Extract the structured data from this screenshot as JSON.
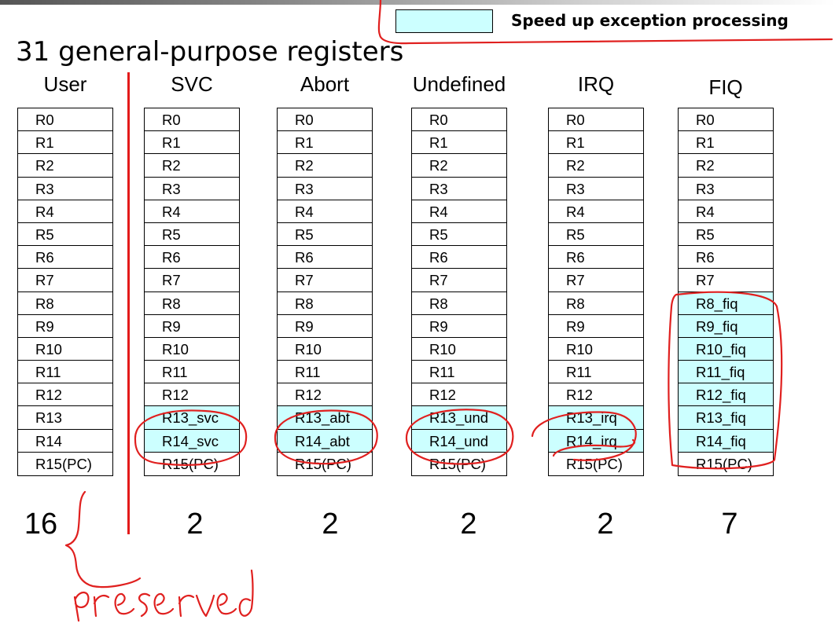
{
  "legend": {
    "label": "Speed up exception processing",
    "swatch_color": "#ccffff"
  },
  "title": "31 general-purpose registers",
  "annotation_color": "#e31a1a",
  "modes": [
    {
      "name": "User",
      "count": "16",
      "registers": [
        "R0",
        "R1",
        "R2",
        "R3",
        "R4",
        "R5",
        "R6",
        "R7",
        "R8",
        "R9",
        "R10",
        "R11",
        "R12",
        "R13",
        "R14",
        "R15(PC)"
      ],
      "banked": []
    },
    {
      "name": "SVC",
      "count": "2",
      "registers": [
        "R0",
        "R1",
        "R2",
        "R3",
        "R4",
        "R5",
        "R6",
        "R7",
        "R8",
        "R9",
        "R10",
        "R11",
        "R12",
        "R13_svc",
        "R14_svc",
        "R15(PC)"
      ],
      "banked": [
        13,
        14
      ]
    },
    {
      "name": "Abort",
      "count": "2",
      "registers": [
        "R0",
        "R1",
        "R2",
        "R3",
        "R4",
        "R5",
        "R6",
        "R7",
        "R8",
        "R9",
        "R10",
        "R11",
        "R12",
        "R13_abt",
        "R14_abt",
        "R15(PC)"
      ],
      "banked": [
        13,
        14
      ]
    },
    {
      "name": "Undefined",
      "count": "2",
      "registers": [
        "R0",
        "R1",
        "R2",
        "R3",
        "R4",
        "R5",
        "R6",
        "R7",
        "R8",
        "R9",
        "R10",
        "R11",
        "R12",
        "R13_und",
        "R14_und",
        "R15(PC)"
      ],
      "banked": [
        13,
        14
      ]
    },
    {
      "name": "IRQ",
      "count": "2",
      "registers": [
        "R0",
        "R1",
        "R2",
        "R3",
        "R4",
        "R5",
        "R6",
        "R7",
        "R8",
        "R9",
        "R10",
        "R11",
        "R12",
        "R13_irq",
        "R14_irq",
        "R15(PC)"
      ],
      "banked": [
        13,
        14
      ]
    },
    {
      "name": "FIQ",
      "count": "7",
      "registers": [
        "R0",
        "R1",
        "R2",
        "R3",
        "R4",
        "R5",
        "R6",
        "R7",
        "R8_fiq",
        "R9_fiq",
        "R10_fiq",
        "R11_fiq",
        "R12_fiq",
        "R13_fiq",
        "R14_fiq",
        "R15(PC)"
      ],
      "banked": [
        8,
        9,
        10,
        11,
        12,
        13,
        14
      ]
    }
  ],
  "handwritten_note": "preserved"
}
